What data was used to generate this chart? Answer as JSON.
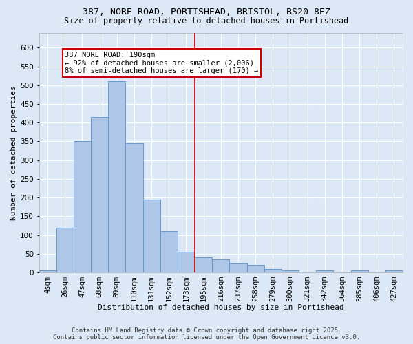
{
  "title_line1": "387, NORE ROAD, PORTISHEAD, BRISTOL, BS20 8EZ",
  "title_line2": "Size of property relative to detached houses in Portishead",
  "xlabel": "Distribution of detached houses by size in Portishead",
  "ylabel": "Number of detached properties",
  "categories": [
    "4sqm",
    "26sqm",
    "47sqm",
    "68sqm",
    "89sqm",
    "110sqm",
    "131sqm",
    "152sqm",
    "173sqm",
    "195sqm",
    "216sqm",
    "237sqm",
    "258sqm",
    "279sqm",
    "300sqm",
    "321sqm",
    "342sqm",
    "364sqm",
    "385sqm",
    "406sqm",
    "427sqm"
  ],
  "values": [
    5,
    120,
    350,
    415,
    510,
    345,
    195,
    110,
    55,
    40,
    35,
    25,
    20,
    10,
    5,
    0,
    5,
    0,
    5,
    0,
    5
  ],
  "bar_color": "#aec6e8",
  "bar_edge_color": "#6699cc",
  "vline_color": "#cc0000",
  "annotation_text": "387 NORE ROAD: 190sqm\n← 92% of detached houses are smaller (2,006)\n8% of semi-detached houses are larger (170) →",
  "annotation_box_facecolor": "#ffffff",
  "annotation_box_edgecolor": "#cc0000",
  "ylim": [
    0,
    640
  ],
  "yticks": [
    0,
    50,
    100,
    150,
    200,
    250,
    300,
    350,
    400,
    450,
    500,
    550,
    600
  ],
  "bg_color": "#dce8f5",
  "plot_bg_color": "#dce8f5",
  "grid_color": "#ffffff",
  "footer_line1": "Contains HM Land Registry data © Crown copyright and database right 2025.",
  "footer_line2": "Contains public sector information licensed under the Open Government Licence v3.0.",
  "title_fontsize": 9.5,
  "subtitle_fontsize": 8.5,
  "axis_label_fontsize": 8,
  "tick_fontsize": 7.5,
  "annotation_fontsize": 7.5,
  "footer_fontsize": 6.5
}
